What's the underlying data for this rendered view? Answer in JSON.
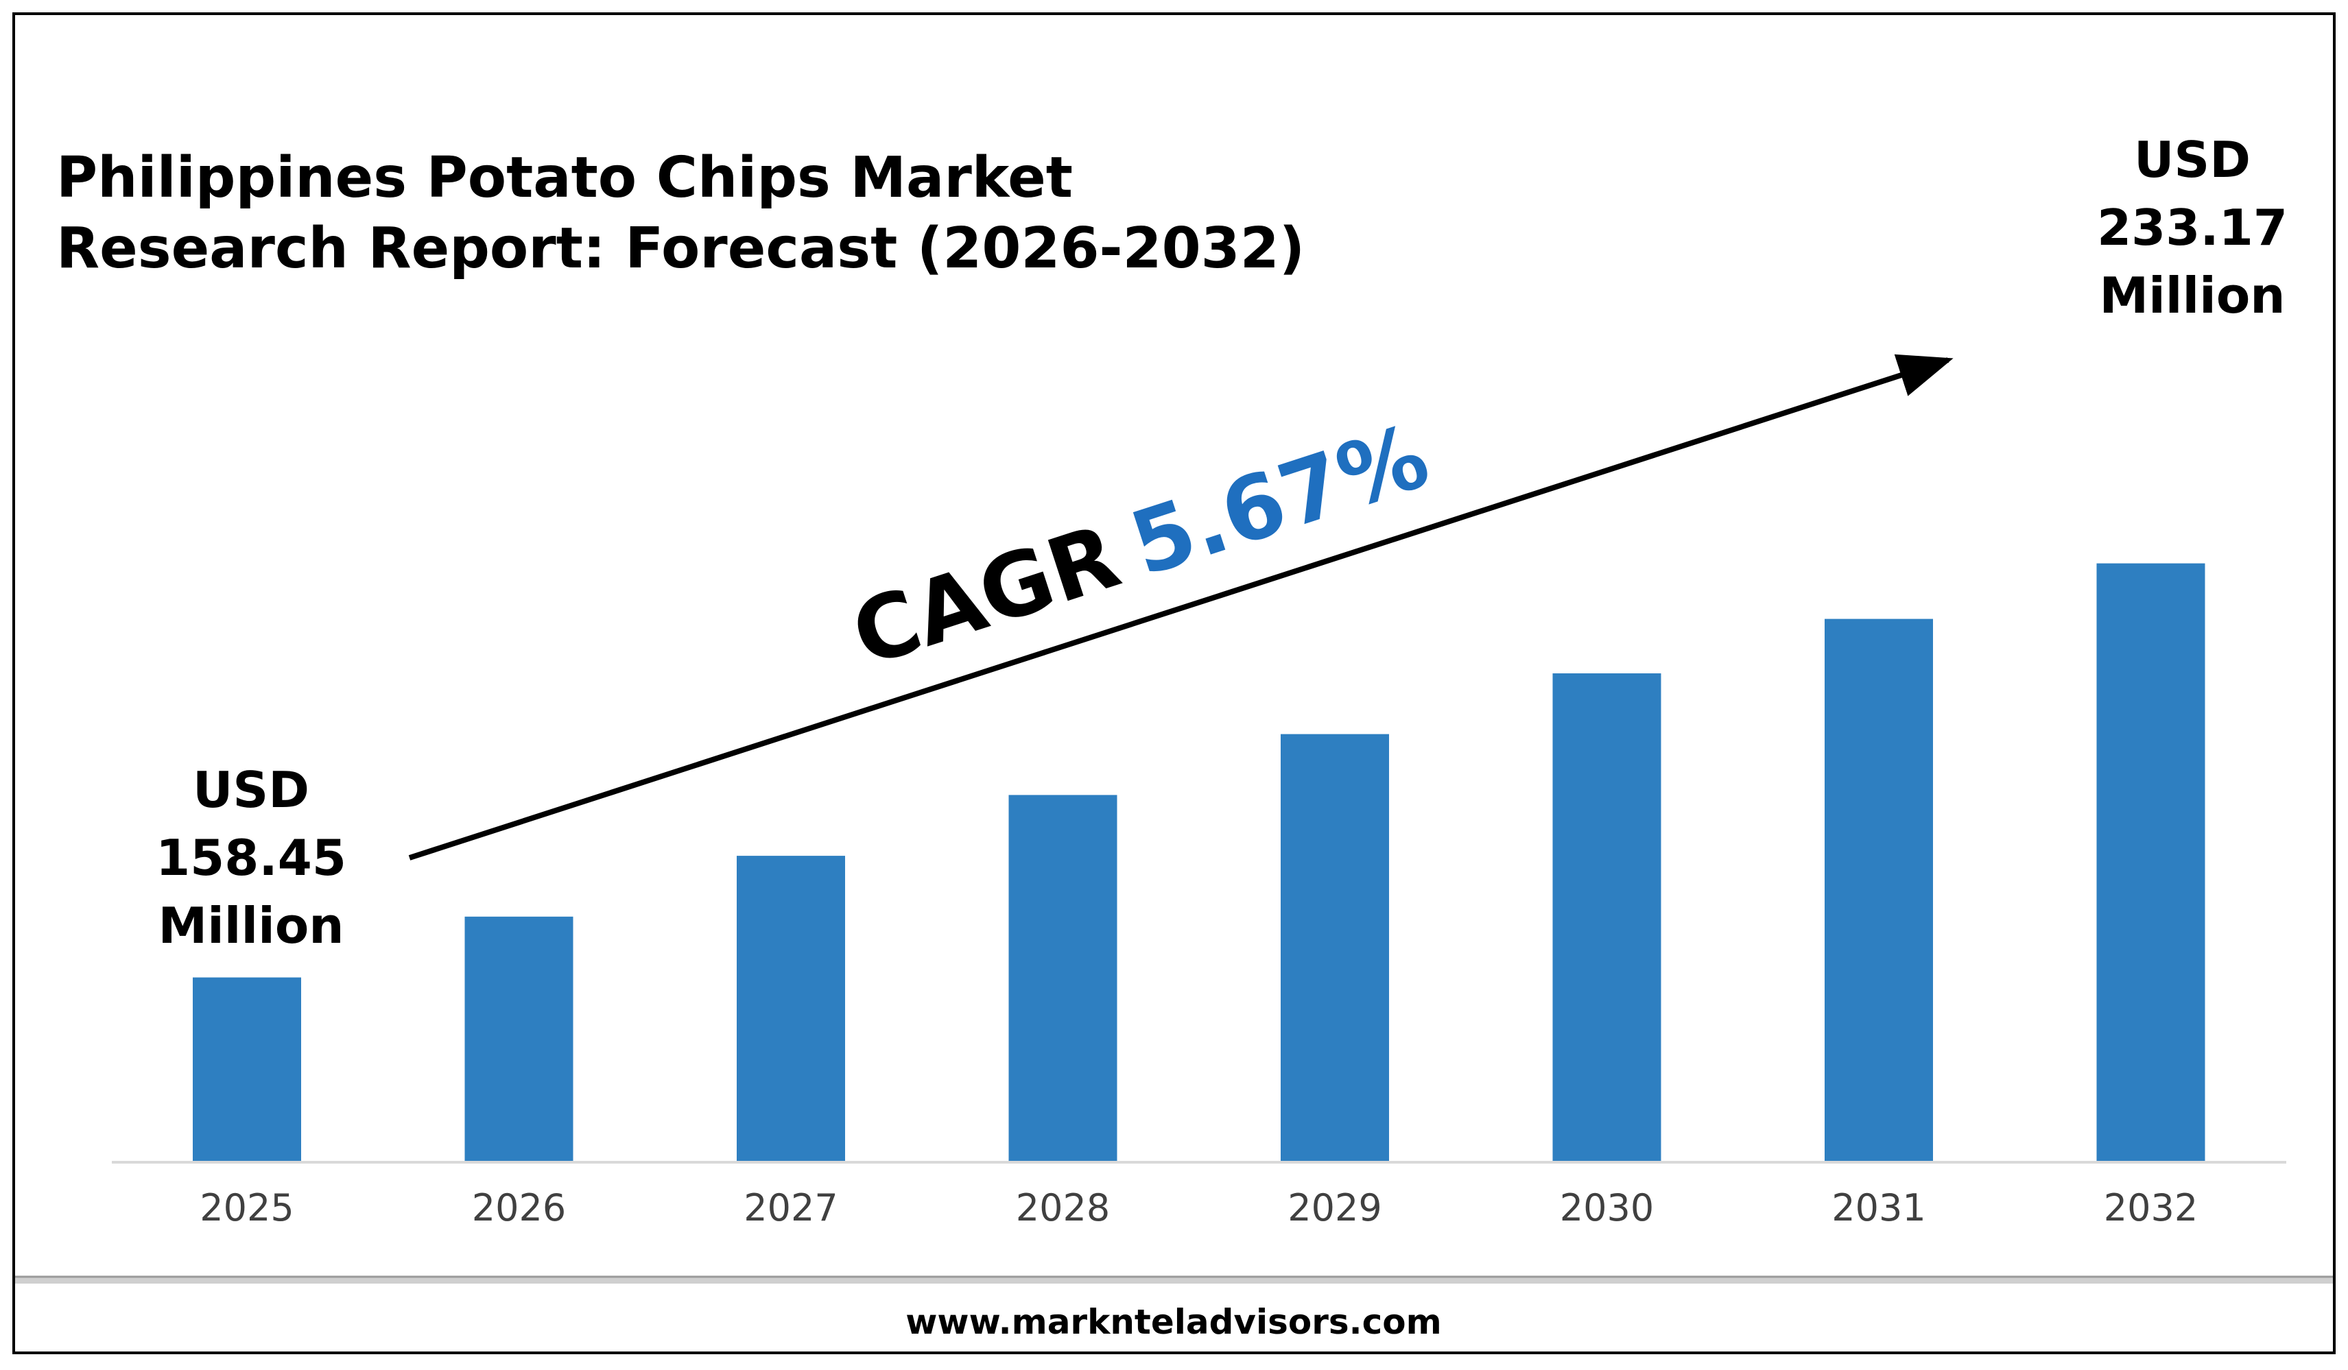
{
  "chart_data": {
    "type": "bar",
    "title_lines": [
      "Philippines Potato Chips Market",
      "Research Report: Forecast (2026-2032)"
    ],
    "categories": [
      "2025",
      "2026",
      "2027",
      "2028",
      "2029",
      "2030",
      "2031",
      "2032"
    ],
    "values": [
      158.45,
      169.43,
      180.4,
      191.38,
      202.36,
      213.33,
      223.15,
      233.17
    ],
    "value_unit": "USD Million",
    "first_label": {
      "line1": "USD",
      "line2": "158.45",
      "line3": "Million"
    },
    "last_label": {
      "line1": "USD",
      "line2": "233.17",
      "line3": "Million"
    },
    "cagr": {
      "label": "CAGR",
      "value": "5.67%"
    },
    "xlabel": "",
    "ylabel": "",
    "grid": false,
    "legend": "none",
    "bar_color": "#2e7fc1",
    "cagr_color": "#1f6fbf"
  },
  "footer": {
    "website": "www.marknteladvisors.com"
  }
}
